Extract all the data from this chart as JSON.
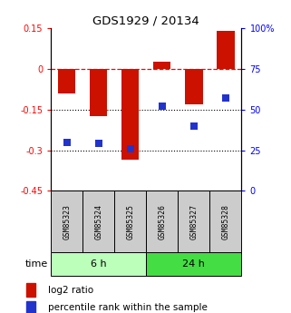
{
  "title": "GDS1929 / 20134",
  "samples": [
    "GSM85323",
    "GSM85324",
    "GSM85325",
    "GSM85326",
    "GSM85327",
    "GSM85328"
  ],
  "log2_ratio": [
    -0.09,
    -0.175,
    -0.335,
    0.028,
    -0.13,
    0.14
  ],
  "percentile_rank": [
    30,
    29,
    26,
    52,
    40,
    57
  ],
  "groups": [
    {
      "label": "6 h",
      "indices": [
        0,
        1,
        2
      ],
      "color": "#bbffbb"
    },
    {
      "label": "24 h",
      "indices": [
        3,
        4,
        5
      ],
      "color": "#44dd44"
    }
  ],
  "ylim_left": [
    -0.45,
    0.15
  ],
  "ylim_right": [
    0,
    100
  ],
  "yticks_left": [
    0.15,
    0,
    -0.15,
    -0.3,
    -0.45
  ],
  "yticks_right": [
    100,
    75,
    50,
    25,
    0
  ],
  "bar_color": "#cc1100",
  "dot_color": "#2233cc",
  "bar_width": 0.55,
  "dot_size": 35,
  "sample_box_color": "#cccccc",
  "light_green": "#bbffbb",
  "dark_green": "#44dd44"
}
